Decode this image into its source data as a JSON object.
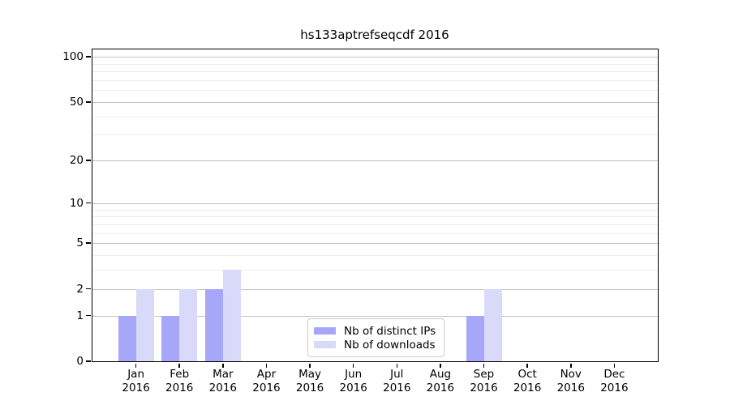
{
  "chart_data": {
    "type": "bar",
    "title": "hs133aptrefseqcdf 2016",
    "categories": [
      "Jan",
      "Feb",
      "Mar",
      "Apr",
      "May",
      "Jun",
      "Jul",
      "Aug",
      "Sep",
      "Oct",
      "Nov",
      "Dec"
    ],
    "category_year": "2016",
    "series": [
      {
        "name": "Nb of distinct IPs",
        "color": "#a7a7fa",
        "values": [
          1,
          1,
          2,
          0,
          0,
          0,
          0,
          0,
          1,
          0,
          0,
          0
        ]
      },
      {
        "name": "Nb of downloads",
        "color": "#d9d9fa",
        "values": [
          2,
          2,
          3,
          0,
          0,
          0,
          0,
          0,
          2,
          0,
          0,
          0
        ]
      }
    ],
    "yscale": "log10(1+y)",
    "ylim": [
      0,
      113
    ],
    "yticks": [
      0,
      1,
      2,
      5,
      10,
      20,
      50,
      100
    ],
    "minor_gridlines": [
      3,
      4,
      6,
      7,
      8,
      9,
      30,
      40,
      60,
      70,
      80,
      90
    ],
    "grid": true,
    "legend_position": "inside-bottom-center",
    "colors": {
      "axis": "#000000",
      "major_grid": "#c2c2c2",
      "minor_grid": "#ececec",
      "legend_border": "#cccccc"
    }
  }
}
